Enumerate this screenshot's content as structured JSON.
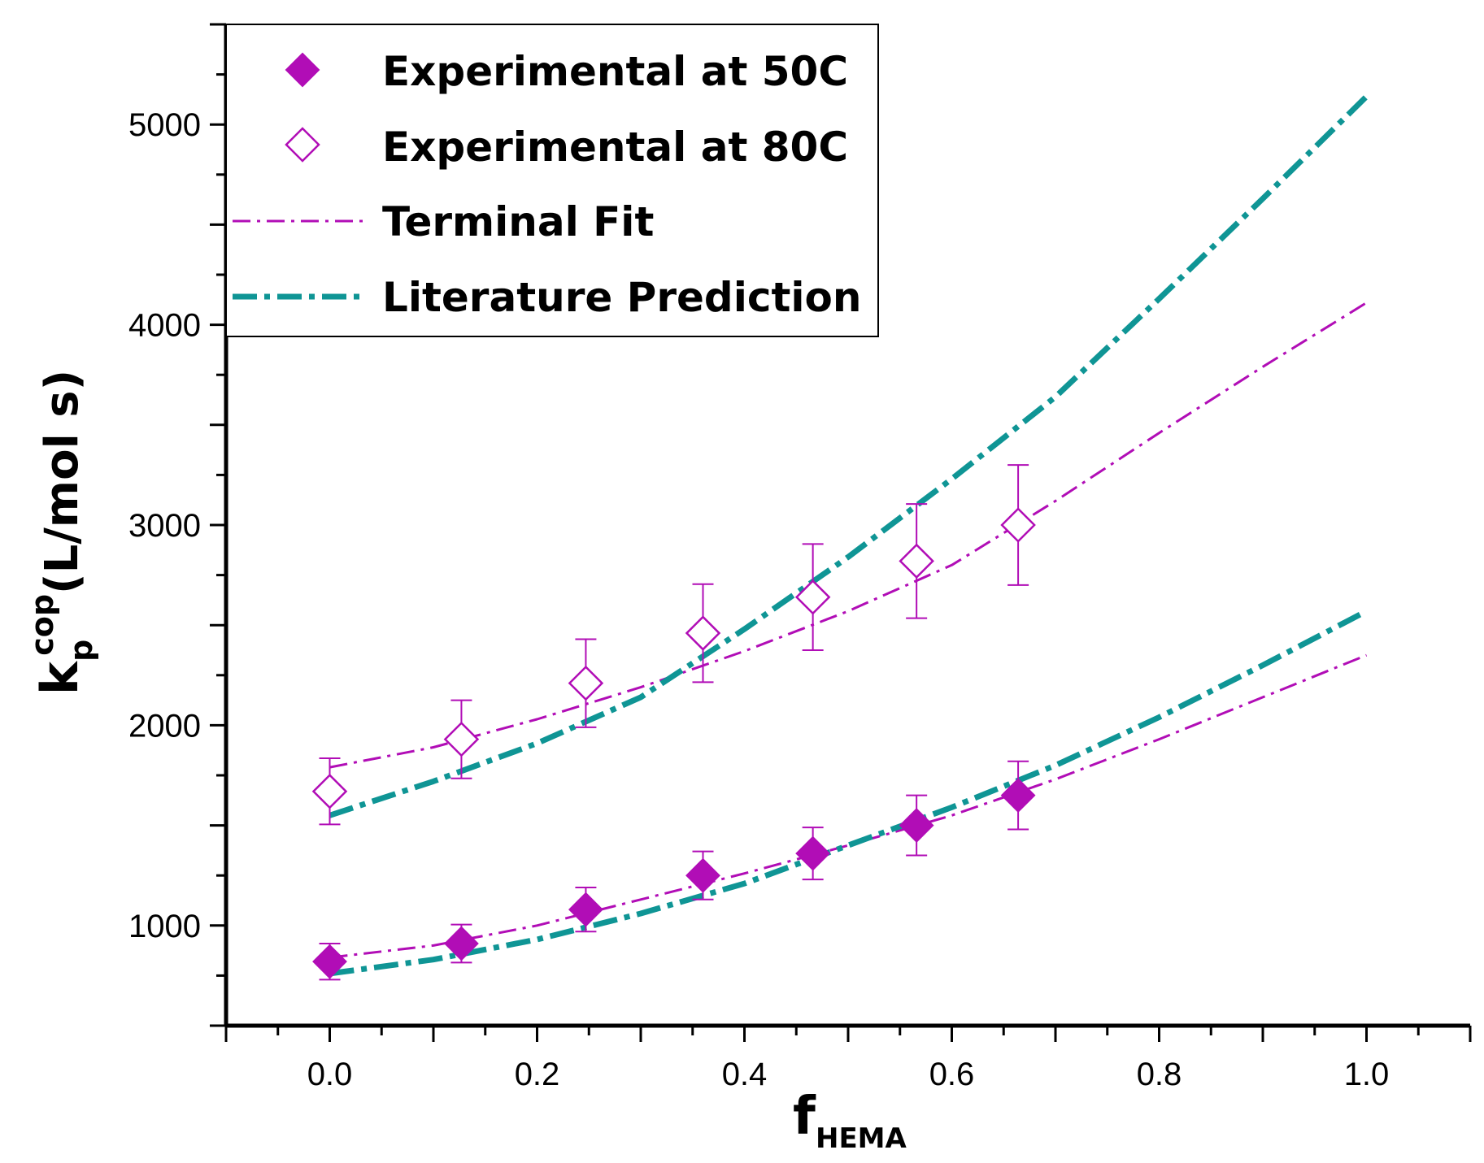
{
  "chart_data": {
    "type": "scatter",
    "title": "",
    "xlabel": {
      "main": "f",
      "sub": "HEMA"
    },
    "ylabel": {
      "main": "k",
      "sub": "p",
      "sup": "cop",
      "unit": "(L/mol s)"
    },
    "xlim": [
      -0.1,
      1.1
    ],
    "ylim": [
      500,
      5500
    ],
    "x_ticks": [
      0.0,
      0.2,
      0.4,
      0.6,
      0.8,
      1.0
    ],
    "x_tick_labels": [
      "0.0",
      "0.2",
      "0.4",
      "0.6",
      "0.8",
      "1.0"
    ],
    "y_ticks": [
      1000,
      2000,
      3000,
      4000,
      5000
    ],
    "y_tick_labels": [
      "1000",
      "2000",
      "3000",
      "4000",
      "5000"
    ],
    "grid": false,
    "legend_position": "top-left",
    "colors": {
      "magenta": "#b10db6",
      "teal": "#0f9595"
    },
    "series": [
      {
        "name": "Experimental at 50C",
        "kind": "points",
        "marker": "diamond-filled",
        "color": "#b10db6",
        "x": [
          0.0,
          0.127,
          0.247,
          0.36,
          0.466,
          0.566,
          0.664
        ],
        "y": [
          820,
          910,
          1080,
          1250,
          1360,
          1500,
          1650
        ],
        "err": [
          90,
          95,
          110,
          120,
          130,
          150,
          170
        ]
      },
      {
        "name": "Experimental at 80C",
        "kind": "points",
        "marker": "diamond-open",
        "color": "#b10db6",
        "x": [
          0.0,
          0.127,
          0.247,
          0.36,
          0.466,
          0.566,
          0.664
        ],
        "y": [
          1670,
          1930,
          2210,
          2460,
          2640,
          2820,
          3000
        ],
        "err": [
          165,
          195,
          220,
          245,
          265,
          285,
          300
        ]
      },
      {
        "name": "Terminal Fit",
        "kind": "line",
        "style": "dash-dot-thin",
        "color": "#b10db6",
        "x": [
          0.0,
          0.1,
          0.2,
          0.3,
          0.4,
          0.5,
          0.6,
          0.7,
          0.8,
          0.9,
          1.0
        ],
        "y": [
          1790,
          1890,
          2030,
          2190,
          2370,
          2570,
          2800,
          3120,
          3460,
          3790,
          4110
        ]
      },
      {
        "name": "",
        "kind": "line",
        "style": "dash-dot-thin",
        "color": "#b10db6",
        "x": [
          0.0,
          0.1,
          0.2,
          0.3,
          0.4,
          0.5,
          0.6,
          0.7,
          0.8,
          0.9,
          1.0
        ],
        "y": [
          840,
          900,
          1000,
          1130,
          1260,
          1400,
          1550,
          1730,
          1930,
          2140,
          2350
        ]
      },
      {
        "name": "Literature Prediction",
        "kind": "line",
        "style": "dash-dot-thick",
        "color": "#0f9595",
        "x": [
          0.0,
          0.1,
          0.2,
          0.3,
          0.4,
          0.5,
          0.6,
          0.7,
          0.8,
          0.9,
          1.0
        ],
        "y": [
          1550,
          1720,
          1910,
          2140,
          2480,
          2840,
          3230,
          3640,
          4130,
          4630,
          5140
        ]
      },
      {
        "name": "",
        "kind": "line",
        "style": "dash-dot-thick",
        "color": "#0f9595",
        "x": [
          0.0,
          0.1,
          0.2,
          0.3,
          0.4,
          0.5,
          0.6,
          0.7,
          0.8,
          0.9,
          1.0
        ],
        "y": [
          760,
          830,
          930,
          1060,
          1210,
          1400,
          1590,
          1800,
          2040,
          2300,
          2570
        ]
      }
    ]
  }
}
